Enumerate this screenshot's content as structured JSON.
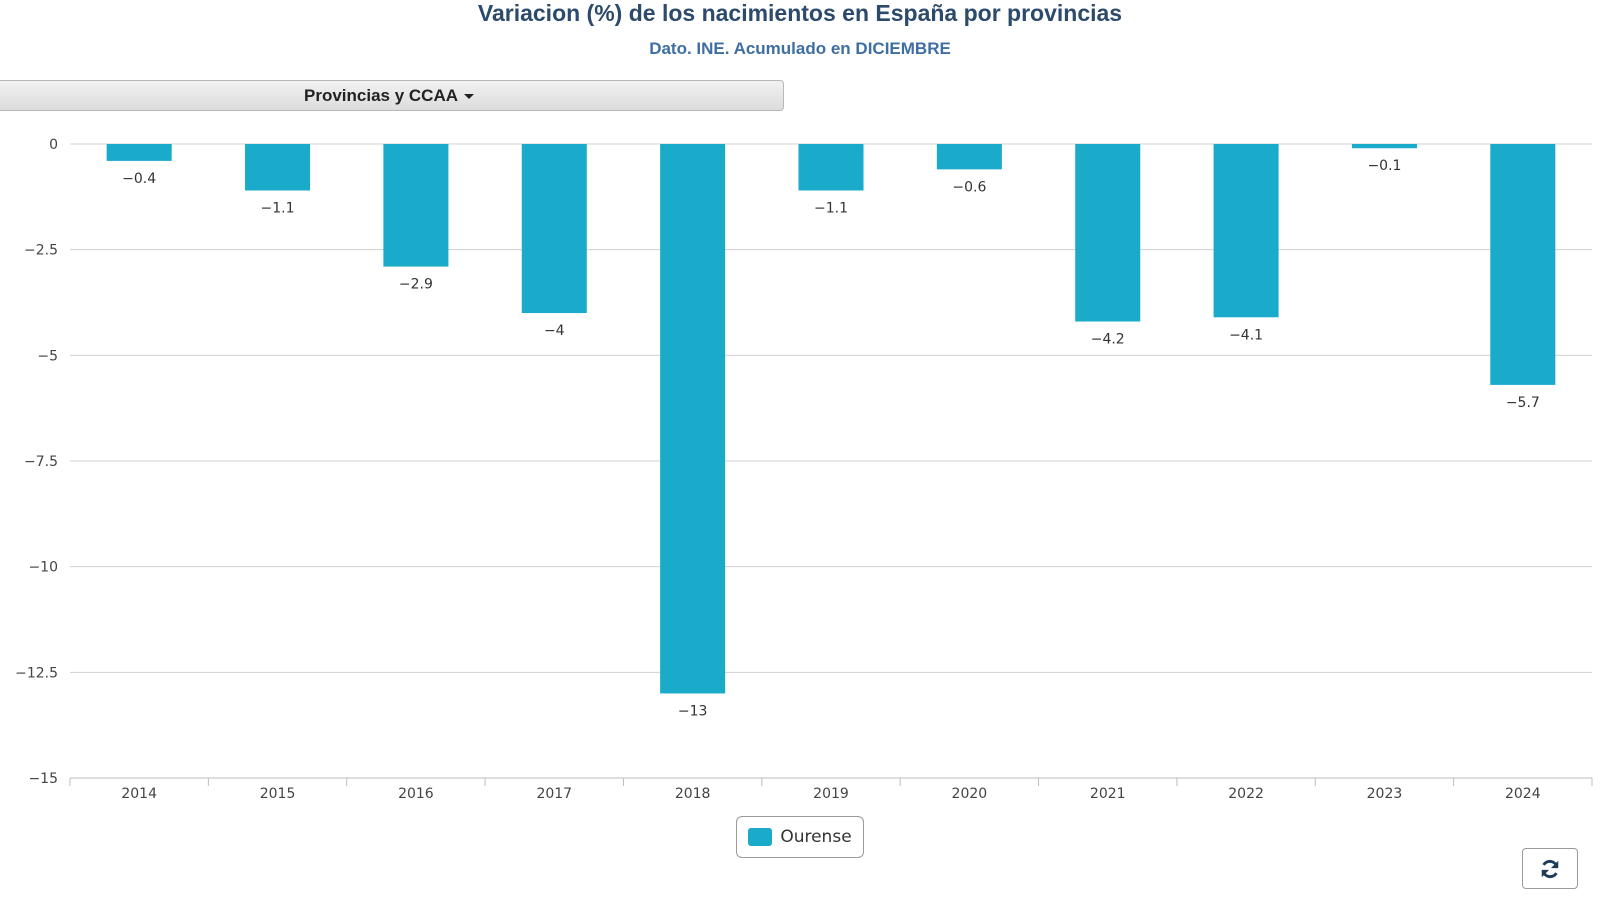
{
  "header": {
    "title": "Variacion (%) de los nacimientos en España por provincias",
    "subtitle": "Dato. INE. Acumulado en DICIEMBRE"
  },
  "controls": {
    "dropdown_label": "Provincias y CCAA",
    "refresh_icon": "refresh-icon"
  },
  "colors": {
    "bar": "#1aabcb",
    "grid": "#d0d0d0",
    "title": "#2c4a6b",
    "subtitle": "#3f6ea3"
  },
  "chart_data": {
    "type": "bar",
    "title": "Variacion (%) de los nacimientos en España por provincias",
    "subtitle": "Dato. INE. Acumulado en DICIEMBRE",
    "xlabel": "",
    "ylabel": "",
    "categories": [
      "2014",
      "2015",
      "2016",
      "2017",
      "2018",
      "2019",
      "2020",
      "2021",
      "2022",
      "2023",
      "2024"
    ],
    "series": [
      {
        "name": "Ourense",
        "values": [
          -0.4,
          -1.1,
          -2.9,
          -4,
          -13,
          -1.1,
          -0.6,
          -4.2,
          -4.1,
          -0.1,
          -5.7
        ],
        "labels": [
          "−0.4",
          "−1.1",
          "−2.9",
          "−4",
          "−13",
          "−1.1",
          "−0.6",
          "−4.2",
          "−4.1",
          "−0.1",
          "−5.7"
        ]
      }
    ],
    "ylim": [
      -15,
      0
    ],
    "yticks": [
      0,
      -2.5,
      -5,
      -7.5,
      -10,
      -12.5,
      -15
    ],
    "ytick_labels": [
      "0",
      "−2.5",
      "−5",
      "−7.5",
      "−10",
      "−12.5",
      "−15"
    ],
    "grid": true,
    "legend_position": "bottom-center"
  }
}
